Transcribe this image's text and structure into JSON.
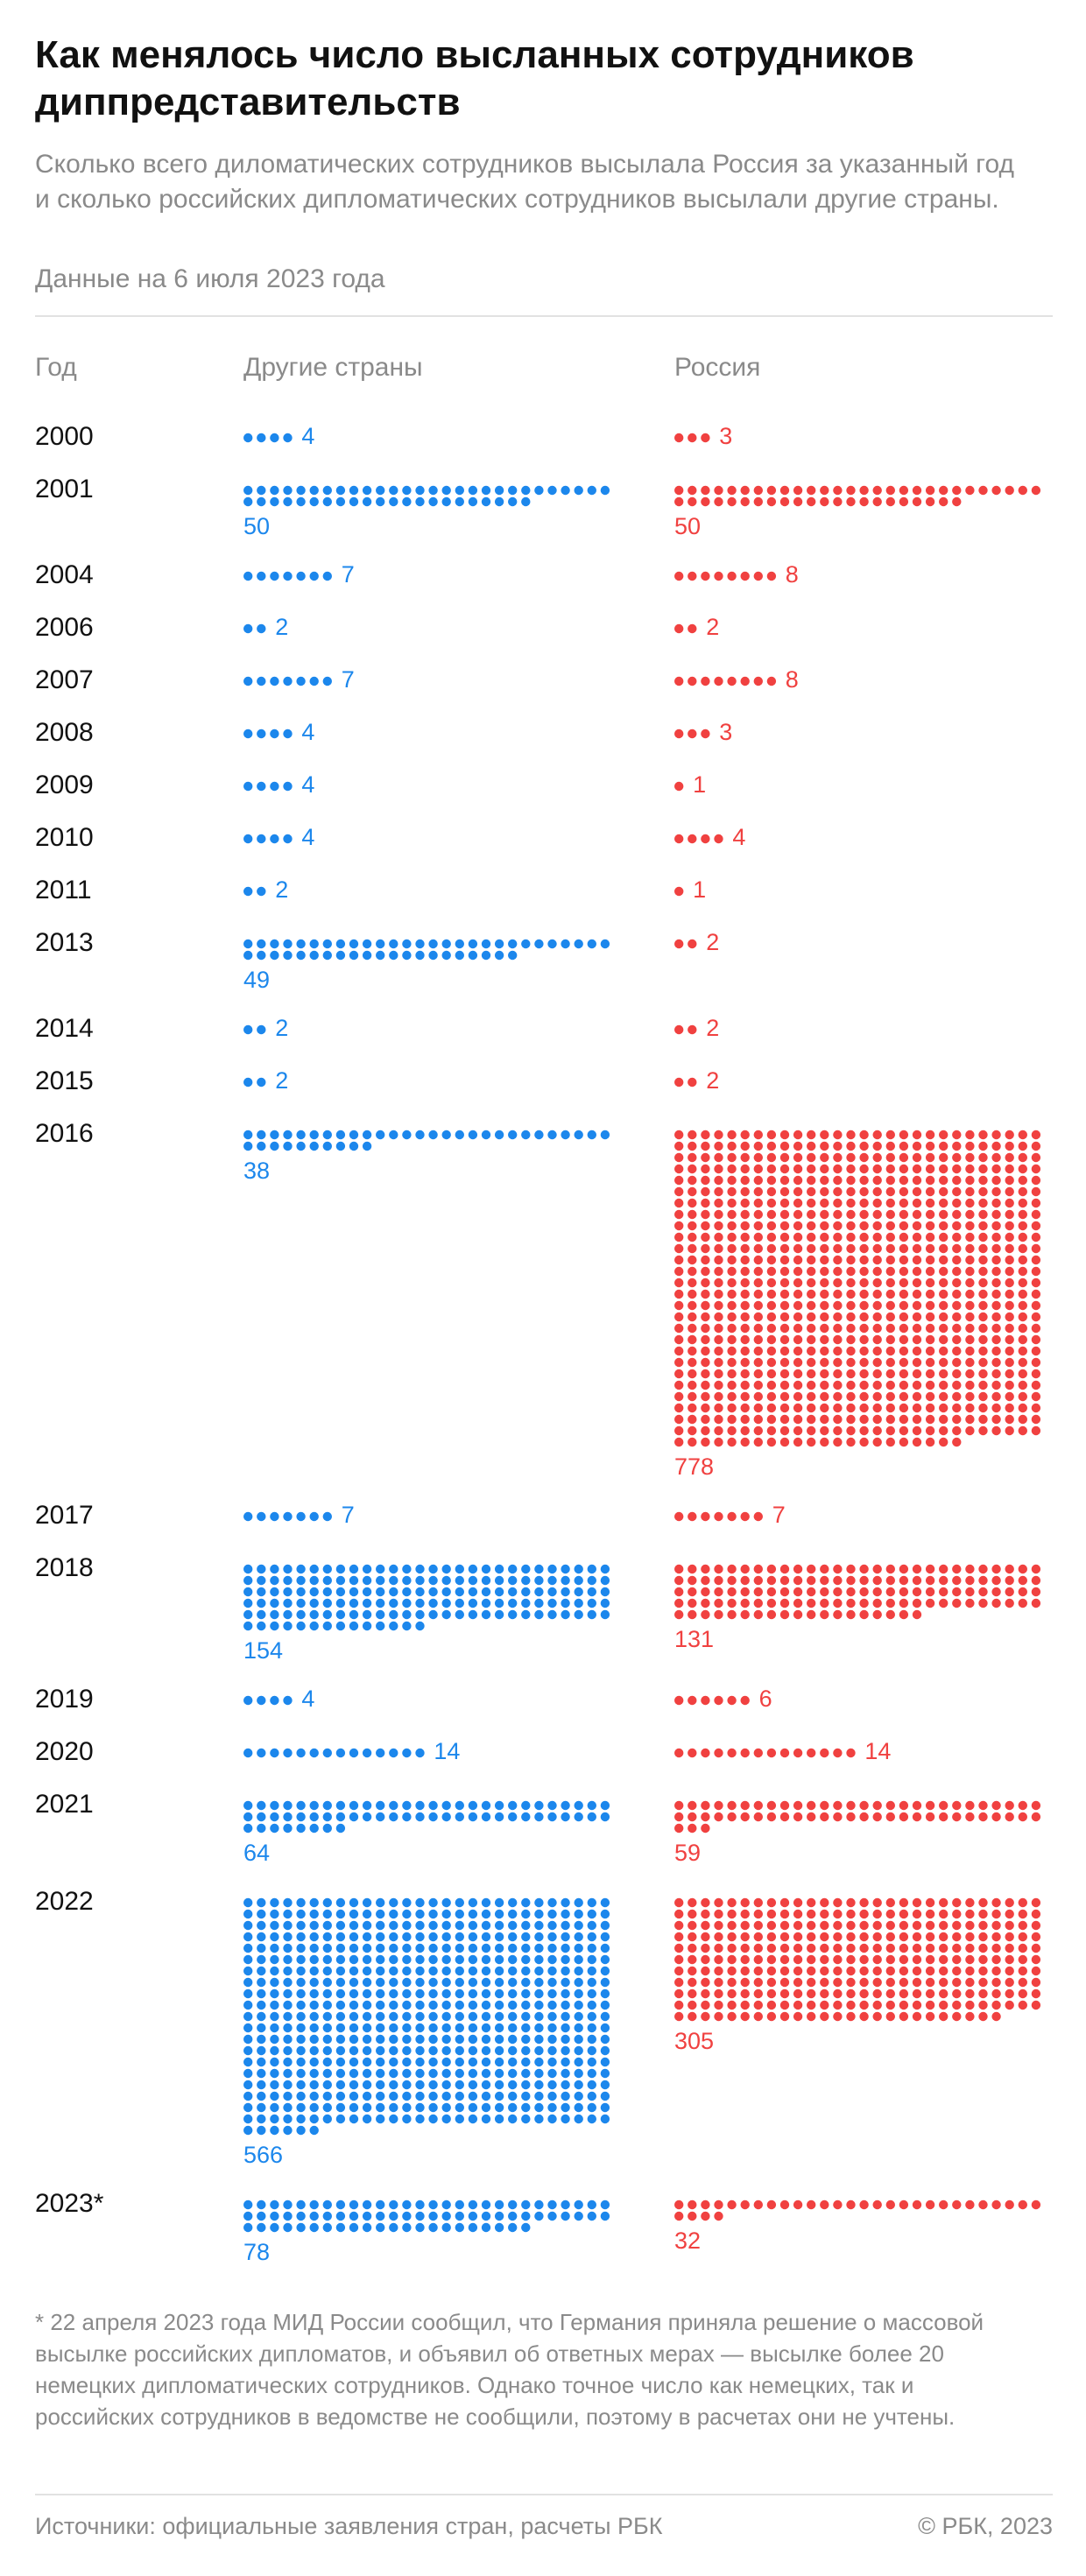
{
  "chart_data": {
    "type": "pictogram",
    "title": "Как менялось число высланных сотрудников диппредставительств",
    "subtitle": "Сколько всего диломатических сотрудников высылала Россия за указанный год и сколько российских дипломатических сотрудников высылали другие страны.",
    "date_note": "Данные на 6 июля 2023 года",
    "category_header": "Год",
    "categories": [
      "2000",
      "2001",
      "2004",
      "2006",
      "2007",
      "2008",
      "2009",
      "2010",
      "2011",
      "2013",
      "2014",
      "2015",
      "2016",
      "2017",
      "2018",
      "2019",
      "2020",
      "2021",
      "2022",
      "2023*"
    ],
    "series": [
      {
        "name": "Другие страны",
        "color": "#1c87ec",
        "values": [
          4,
          50,
          7,
          2,
          7,
          4,
          4,
          4,
          2,
          49,
          2,
          2,
          38,
          7,
          154,
          4,
          14,
          64,
          566,
          78
        ]
      },
      {
        "name": "Россия",
        "color": "#f04140",
        "values": [
          3,
          50,
          8,
          2,
          8,
          3,
          1,
          4,
          1,
          2,
          2,
          2,
          778,
          7,
          131,
          6,
          14,
          59,
          305,
          32
        ]
      }
    ],
    "footnote": "* 22 апреля 2023 года МИД России сообщил, что Германия приняла решение о массовой высылке российских дипломатов, и объявил об ответных мерах — высылке более 20 немецких дипломатических сотрудников. Однако точное число как немецких, так и российских сотрудников в ведомстве не сообщили, поэтому в расчетах они не учтены.",
    "source": "Источники: официальные заявления стран, расчеты РБК",
    "copyright": "© РБК, 2023"
  }
}
